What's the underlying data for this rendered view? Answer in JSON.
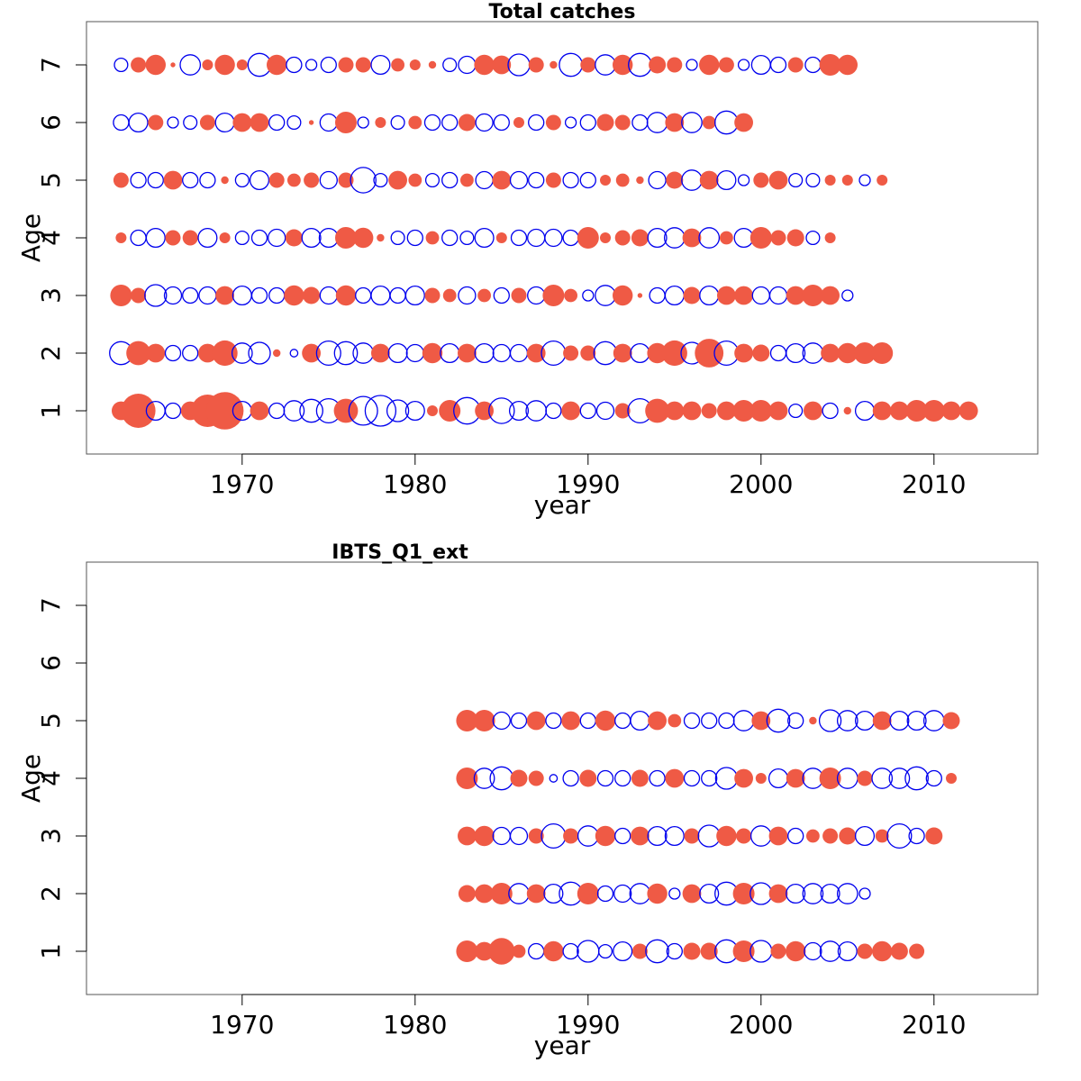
{
  "colors": {
    "positive": "#ef5a45",
    "negative": "#0000ee"
  },
  "chart_data": [
    {
      "type": "scatter",
      "title": "Total catches",
      "xlabel": "year",
      "ylabel": "Age",
      "xlim": [
        1961,
        2016
      ],
      "ylim": [
        0.25,
        7.75
      ],
      "x_ticks": [
        1970,
        1980,
        1990,
        2000,
        2010
      ],
      "y_ticks": [
        1,
        2,
        3,
        4,
        5,
        6,
        7
      ],
      "encoding": "bubble: filled = positive residual, open = negative residual; size = magnitude",
      "start_year": 1963,
      "rows": [
        {
          "age": 1,
          "residuals": "p0.3 p1 n0.3 n0.2 p0.3 p0.9 p1.2 n0.3 p0.3 n0.2 n0.35 n0.45 n0.5 p0.5 n0.7 n0.8 n0.4 n0.3 p0.1 p0.4 n0.6 p0.3 n0.55 n0.3 n0.35 n0.2 p0.3 n0.2 n0.25 p0.2 n0.5 p0.5 p0.3 p0.3 p0.2 p0.3 p0.4 p0.4 p0.3 n0.15 p0.3 n0.2 p0.05 n0.3 p0.3 p0.3 p0.4 p0.4 p0.3 p0.3"
        },
        {
          "age": 2,
          "residuals": "n0.45 p0.5 p0.3 n0.2 n0.2 p0.3 p0.55 n0.35 n0.4 p0.05 n0.05 p0.3 n0.5 n0.45 n0.35 p0.3 n0.3 n0.25 p0.35 n0.3 p0.3 n0.3 n0.25 n0.25 p0.3 n0.5 p0.2 p0.2 n0.45 p0.3 n0.3 p0.35 p0.55 n0.4 p0.7 n0.5 p0.3 p0.25 n0.2 n0.3 n0.35 p0.3 p0.35 p0.4 p0.4"
        },
        {
          "age": 3,
          "residuals": "p0.4 p0.2 n0.4 n0.25 n0.2 n0.25 p0.3 n0.3 n0.2 n0.2 p0.35 p0.25 n0.25 p0.35 n0.2 n0.3 n0.2 n0.3 p0.2 p0.15 n0.25 p0.15 n0.2 p0.2 n0.25 p0.4 p0.15 n0.1 n0.35 p0.35 p0.02 n0.2 n0.3 p0.25 n0.3 p0.3 p0.3 n0.25 n0.25 p0.3 p0.4 p0.3 n0.1"
        },
        {
          "age": 4,
          "residuals": "p0.1 n0.2 n0.3 p0.2 p0.2 n0.3 p0.1 n0.15 n0.2 n0.25 p0.25 n0.3 n0.3 p0.4 p0.35 p0.05 n0.15 n0.2 p0.15 n0.2 n0.15 n0.3 p0.1 n0.2 n0.25 n0.25 n0.2 p0.4 p0.1 p0.2 p0.25 n0.3 n0.35 p0.3 n0.35 p0.15 n0.3 p0.4 p0.2 p0.25 n0.15 p0.1"
        },
        {
          "age": 5,
          "residuals": "p0.2 n0.2 n0.2 p0.3 n0.2 n0.2 p0.05 n0.15 n0.3 p0.2 p0.15 p0.2 n0.25 p0.2 n0.55 n0.15 p0.3 p0.15 n0.15 n0.2 p0.15 n0.25 p0.3 n0.25 n0.2 p0.2 n0.2 n0.2 p0.1 p0.15 p0.05 n0.25 p0.25 n0.35 p0.3 n0.3 n0.1 p0.2 p0.3 n0.15 n0.15 p0.1 p0.1 n0.1 p0.1"
        },
        {
          "age": 6,
          "residuals": "n0.2 n0.3 p0.2 n0.1 n0.15 p0.2 n0.3 p0.3 p0.3 n0.2 n0.15 p0.02 n0.25 p0.4 n0.1 p0.1 n0.15 p0.15 n0.2 n0.2 p0.25 n0.25 n0.2 p0.1 n0.2 p0.2 n0.1 n0.2 p0.25 p0.2 n0.2 n0.35 p0.3 n0.35 p0.15 n0.45 p0.3"
        },
        {
          "age": 7,
          "residuals": "n0.15 p0.2 p0.35 p0.02 n0.35 p0.1 p0.35 p0.1 n0.45 p0.35 n0.2 n0.1 n0.2 p0.2 p0.2 n0.3 p0.15 p0.1 p0.05 n0.15 n0.25 p0.35 p0.3 n0.4 p0.2 p0.05 n0.45 p0.2 n0.35 p0.35 n0.45 p0.25 p0.2 n0.1 p0.35 p0.2 n0.1 n0.3 n0.2 p0.2 n0.2 p0.4 p0.35"
        }
      ]
    },
    {
      "type": "scatter",
      "title": "IBTS_Q1_ext",
      "xlabel": "year",
      "ylabel": "Age",
      "xlim": [
        1961,
        2016
      ],
      "ylim": [
        0.25,
        7.75
      ],
      "x_ticks": [
        1970,
        1980,
        1990,
        2000,
        2010
      ],
      "y_ticks": [
        1,
        2,
        3,
        4,
        5,
        6,
        7
      ],
      "encoding": "bubble: filled = positive residual, open = negative residual; size = magnitude",
      "start_year": 1983,
      "rows": [
        {
          "age": 1,
          "residuals": "p0.4 p0.3 p0.6 p0.15 n0.2 p0.35 n0.2 n0.4 n0.15 n0.3 p0.2 n0.45 n0.2 p0.25 p0.25 n0.45 p0.4 n0.4 p0.2 p0.35 n0.25 n0.35 n0.3 p0.2 p0.35 p0.25 p0.2"
        },
        {
          "age": 2,
          "residuals": "p0.25 p0.3 p0.4 n0.35 p0.3 n0.3 n0.45 p0.4 n0.2 n0.25 n0.35 p0.35 n0.1 p0.3 n0.3 n0.45 p0.4 n0.4 p0.3 n0.3 n0.35 n0.3 n0.35 n0.1"
        },
        {
          "age": 3,
          "residuals": "p0.3 p0.35 n0.25 n0.25 p0.2 n0.5 p0.2 n0.35 p0.35 n0.2 p0.3 n0.3 n0.3 p0.2 n0.4 p0.35 p0.2 n0.35 p0.3 n0.2 p0.15 p0.2 p0.25 n0.3 p0.15 n0.5 n0.2 p0.25"
        },
        {
          "age": 4,
          "residuals": "p0.4 n0.35 n0.45 p0.25 p0.2 n0.05 n0.2 p0.25 n0.2 n0.2 p0.25 n0.2 p0.3 n0.2 n0.2 n0.4 p0.3 p0.1 n0.3 p0.3 n0.35 p0.4 n0.35 p0.2 n0.35 n0.35 n0.45 n0.2 p0.1"
        },
        {
          "age": 5,
          "residuals": "p0.4 p0.4 n0.25 n0.2 p0.3 n0.2 p0.3 n0.2 p0.35 n0.2 n0.3 p0.3 p0.15 n0.2 n0.2 n0.2 n0.35 p0.3 n0.45 n0.2 p0.05 n0.4 n0.35 n0.3 p0.3 n0.3 n0.3 n0.35 p0.25"
        }
      ]
    }
  ]
}
